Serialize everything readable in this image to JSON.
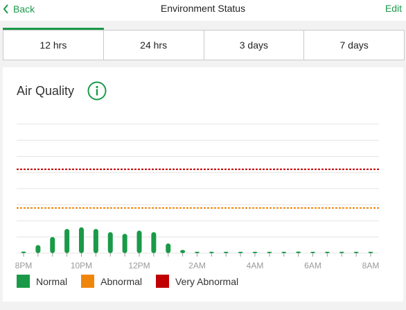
{
  "header": {
    "back_label": "Back",
    "title": "Environment Status",
    "edit_label": "Edit"
  },
  "tabs": [
    {
      "label": "12 hrs",
      "active": true
    },
    {
      "label": "24 hrs",
      "active": false
    },
    {
      "label": "3 days",
      "active": false
    },
    {
      "label": "7 days",
      "active": false
    }
  ],
  "colors": {
    "accent": "#1a9a48",
    "normal": "#1a9a48",
    "abnormal": "#f0850c",
    "very_abnormal": "#c00000"
  },
  "card": {
    "title": "Air Quality",
    "info_icon": "info-icon"
  },
  "legend": [
    {
      "label": "Normal",
      "color": "#1a9a48"
    },
    {
      "label": "Abnormal",
      "color": "#f0850c"
    },
    {
      "label": "Very Abnormal",
      "color": "#c00000"
    }
  ],
  "chart_data": {
    "type": "bar",
    "title": "Air Quality",
    "xlabel": "",
    "ylabel": "",
    "ylim": [
      0,
      8
    ],
    "grid": true,
    "thresholds": [
      {
        "name": "Abnormal",
        "value": 2.8,
        "color": "#f0850c"
      },
      {
        "name": "Very Abnormal",
        "value": 5.2,
        "color": "#c00000"
      }
    ],
    "x_tick_labels": [
      "8PM",
      "10PM",
      "12PM",
      "2AM",
      "4AM",
      "6AM",
      "8AM"
    ],
    "x_tick_positions": [
      0,
      4,
      8,
      12,
      16,
      20,
      24
    ],
    "x_count": 25,
    "series": [
      {
        "values": [
          0.1,
          0.5,
          1.0,
          1.5,
          1.6,
          1.5,
          1.3,
          1.2,
          1.4,
          1.3,
          0.6,
          0.2,
          0.05,
          0.05,
          0.05,
          0.05,
          0.05,
          0.05,
          0.05,
          0.1,
          0.05,
          0.05,
          0.05,
          0.05,
          0.05
        ]
      }
    ],
    "legend_position": "bottom-left"
  }
}
